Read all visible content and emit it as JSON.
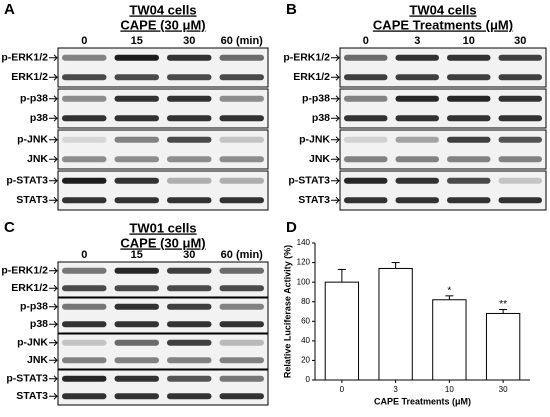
{
  "panels": [
    {
      "letter": "A",
      "title": "TW04 cells",
      "subtitle": "CAPE (30 μM)",
      "lanes": [
        "0",
        "15",
        "30",
        "60 (min)"
      ],
      "rows": [
        "p-ERK1/2",
        "ERK1/2",
        "p-p38",
        "p38",
        "p-JNK",
        "JNK",
        "p-STAT3",
        "STAT3"
      ]
    },
    {
      "letter": "B",
      "title": "TW04 cells",
      "subtitle": "CAPE Treatments (μM)",
      "lanes": [
        "0",
        "3",
        "10",
        "30"
      ],
      "rows": [
        "p-ERK1/2",
        "ERK1/2",
        "p-p38",
        "p38",
        "p-JNK",
        "JNK",
        "p-STAT3",
        "STAT3"
      ]
    },
    {
      "letter": "C",
      "title": "TW01 cells",
      "subtitle": "CAPE (30 μM)",
      "lanes": [
        "0",
        "15",
        "30",
        "60 (min)"
      ],
      "rows": [
        "p-ERK1/2",
        "ERK1/2",
        "p-p38",
        "p38",
        "p-JNK",
        "JNK",
        "p-STAT3",
        "STAT3"
      ]
    }
  ],
  "chart_data": {
    "type": "bar",
    "letter": "D",
    "x_label": "CAPE Treatments (μM)",
    "y_label": "Relative Luciferase Activity (%)",
    "categories": [
      "0",
      "3",
      "10",
      "30"
    ],
    "values": [
      100,
      114,
      82,
      68
    ],
    "errors": [
      13,
      6,
      4,
      4
    ],
    "annotations": [
      null,
      null,
      "*",
      "**"
    ],
    "color": "#ffffff",
    "ylim": [
      0,
      140
    ],
    "yticks": [
      0,
      20,
      40,
      60,
      80,
      100,
      120,
      140
    ]
  }
}
